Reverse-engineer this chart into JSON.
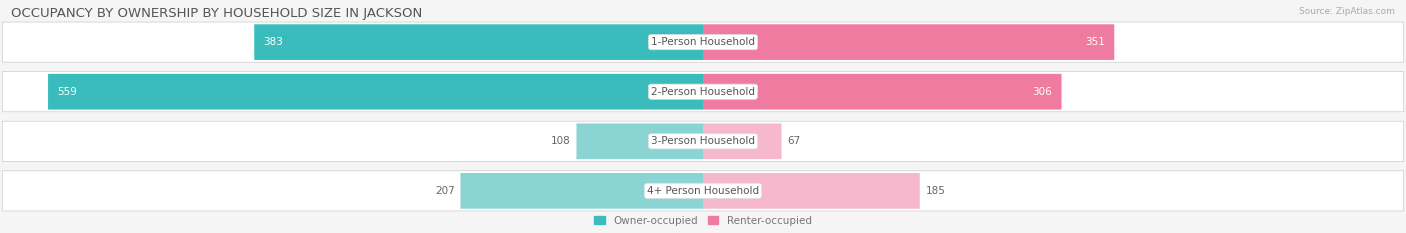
{
  "title": "OCCUPANCY BY OWNERSHIP BY HOUSEHOLD SIZE IN JACKSON",
  "source": "Source: ZipAtlas.com",
  "categories": [
    "1-Person Household",
    "2-Person Household",
    "3-Person Household",
    "4+ Person Household"
  ],
  "owner_values": [
    383,
    559,
    108,
    207
  ],
  "renter_values": [
    351,
    306,
    67,
    185
  ],
  "owner_dark_color": "#3BBCBC",
  "renter_dark_color": "#F07BA0",
  "owner_light_color": "#8AD4D4",
  "renter_light_color": "#F5B8CC",
  "axis_max": 600,
  "chart_bg": "#ffffff",
  "fig_bg": "#f5f5f5",
  "row_bg": "#ebebeb",
  "legend_owner": "Owner-occupied",
  "legend_renter": "Renter-occupied",
  "title_fontsize": 9.5,
  "label_fontsize": 7.5,
  "value_fontsize": 7.5,
  "axis_tick_fontsize": 7.5,
  "source_fontsize": 6.5
}
